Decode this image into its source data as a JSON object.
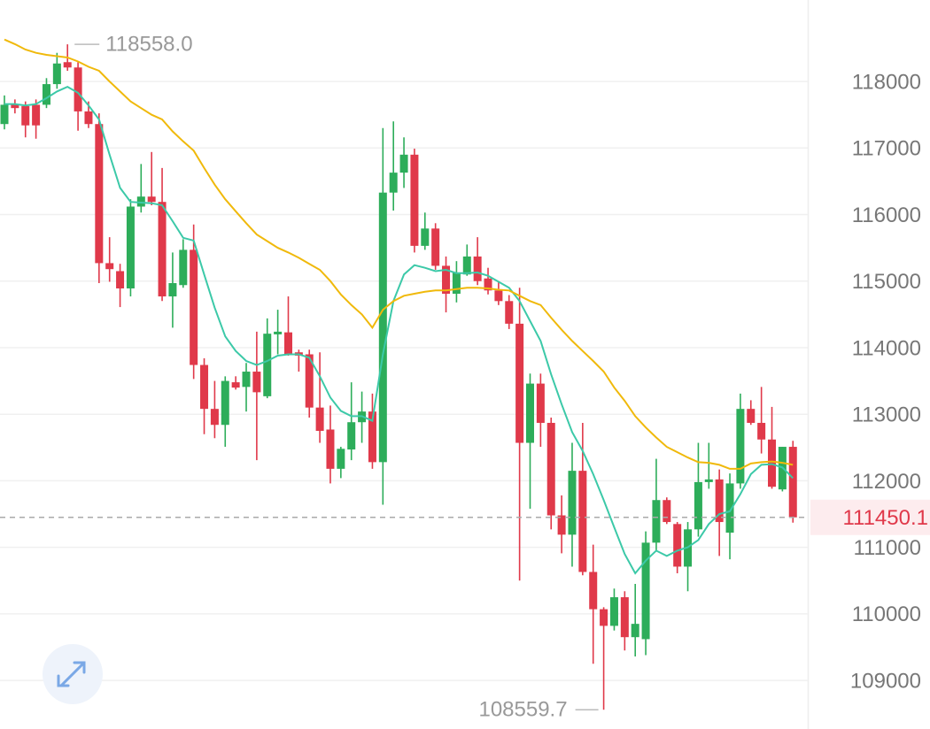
{
  "chart_data": {
    "type": "candlestick",
    "ylim": [
      108270,
      119224
    ],
    "yticks": [
      109000,
      110000,
      111000,
      112000,
      113000,
      114000,
      115000,
      116000,
      117000,
      118000
    ],
    "grid": true,
    "up_color": "#2dad5a",
    "down_color": "#e0394a",
    "open": [
      117360,
      117650,
      117630,
      117650,
      117650,
      117960,
      118290,
      118210,
      117550,
      117360,
      115270,
      115150,
      114890,
      116120,
      116270,
      116190,
      114770,
      114940,
      115470,
      113740,
      113080,
      112840,
      113480,
      113410,
      113640,
      113270,
      114200,
      114230,
      113930,
      113900,
      113100,
      112770,
      112180,
      112470,
      112880,
      113040,
      112280,
      116330,
      116630,
      116900,
      115530,
      115790,
      115230,
      114810,
      115100,
      115370,
      115040,
      114860,
      114700,
      114360,
      112570,
      113460,
      112870,
      111480,
      111190,
      112150,
      110630,
      110070,
      109820,
      110250,
      109650,
      109620,
      111070,
      111710,
      111350,
      110710,
      111270,
      111980,
      112020,
      111220,
      111960,
      113080,
      112870,
      112620,
      111870,
      112510
    ],
    "high": [
      117790,
      117730,
      117700,
      117730,
      118050,
      118430,
      118558,
      118290,
      117700,
      117520,
      115660,
      115260,
      116230,
      116760,
      116940,
      116700,
      115430,
      115630,
      115850,
      113840,
      113500,
      113570,
      113570,
      113770,
      114240,
      114440,
      114570,
      114770,
      113970,
      113970,
      113930,
      113130,
      112510,
      113480,
      113340,
      113310,
      117300,
      117400,
      117160,
      116990,
      116030,
      115870,
      115370,
      115300,
      115550,
      115660,
      115200,
      114990,
      114790,
      114900,
      113610,
      113610,
      112950,
      111780,
      112570,
      112870,
      111040,
      110100,
      110380,
      110340,
      110450,
      111240,
      112330,
      111750,
      111380,
      111380,
      112570,
      112570,
      112170,
      112110,
      113310,
      113210,
      113410,
      113110,
      112510,
      112600
    ],
    "low": [
      117280,
      117520,
      117160,
      117140,
      117600,
      117890,
      118160,
      117260,
      117300,
      114970,
      114990,
      114610,
      114770,
      116030,
      116140,
      114700,
      114300,
      114900,
      113530,
      112700,
      112640,
      112510,
      113370,
      113040,
      112310,
      113240,
      113900,
      113880,
      113640,
      112950,
      112570,
      111960,
      112040,
      112310,
      112570,
      112180,
      111640,
      116060,
      116400,
      115430,
      115470,
      115170,
      114530,
      114680,
      115080,
      114940,
      114800,
      114640,
      114280,
      110500,
      111580,
      112510,
      111270,
      110910,
      110710,
      110580,
      109250,
      108559.7,
      109750,
      109450,
      109360,
      109380,
      110950,
      111350,
      110610,
      110340,
      111160,
      111880,
      110870,
      110820,
      111880,
      112840,
      112410,
      111880,
      111840,
      111370
    ],
    "close": [
      117650,
      117600,
      117340,
      117340,
      117960,
      118270,
      118210,
      117550,
      117360,
      115270,
      115180,
      114890,
      116120,
      116270,
      116190,
      114770,
      114970,
      115470,
      113740,
      113080,
      112840,
      113500,
      113400,
      113640,
      113330,
      114210,
      114240,
      113900,
      113880,
      113100,
      112750,
      112180,
      112480,
      112880,
      113040,
      112280,
      116330,
      116630,
      116900,
      115530,
      115790,
      115230,
      114810,
      115130,
      115370,
      115000,
      114860,
      114700,
      114360,
      112570,
      113460,
      112870,
      111480,
      111190,
      112150,
      110630,
      110070,
      109820,
      110250,
      109650,
      109850,
      111070,
      111710,
      111380,
      110710,
      111270,
      111980,
      112020,
      111380,
      111960,
      113080,
      112870,
      112620,
      111910,
      112510,
      111450.1
    ],
    "series": [
      {
        "color": "#3cc9a8",
        "values": [
          117660,
          117660,
          117640,
          117660,
          117750,
          117850,
          117920,
          117830,
          117640,
          117430,
          116900,
          116400,
          116190,
          116180,
          116170,
          116140,
          115900,
          115650,
          115610,
          115100,
          114600,
          114170,
          113950,
          113800,
          113740,
          113800,
          113880,
          113900,
          113900,
          113850,
          113570,
          113250,
          113050,
          112970,
          112970,
          112900,
          113900,
          114700,
          115100,
          115240,
          115200,
          115150,
          115170,
          115120,
          115120,
          115130,
          115080,
          114990,
          114900,
          114700,
          114400,
          114100,
          113600,
          113150,
          112730,
          112450,
          112100,
          111710,
          111300,
          110900,
          110610,
          110800,
          110950,
          110870,
          110950,
          111000,
          111110,
          111350,
          111500,
          111540,
          111800,
          112100,
          112240,
          112250,
          112200,
          112040
        ]
      },
      {
        "color": "#f0b90b",
        "values": [
          118630,
          118560,
          118480,
          118430,
          118400,
          118380,
          118360,
          118300,
          118220,
          118160,
          118000,
          117850,
          117700,
          117600,
          117500,
          117430,
          117250,
          117100,
          116960,
          116700,
          116450,
          116230,
          116050,
          115870,
          115700,
          115600,
          115500,
          115430,
          115350,
          115260,
          115170,
          115000,
          114800,
          114640,
          114500,
          114300,
          114570,
          114700,
          114780,
          114810,
          114840,
          114860,
          114860,
          114880,
          114900,
          114900,
          114890,
          114870,
          114860,
          114780,
          114700,
          114640,
          114450,
          114270,
          114100,
          113950,
          113800,
          113640,
          113400,
          113200,
          112970,
          112800,
          112650,
          112510,
          112430,
          112350,
          112280,
          112270,
          112240,
          112180,
          112180,
          112260,
          112280,
          112290,
          112270,
          112240
        ]
      }
    ],
    "max_label": {
      "value": 118558,
      "label": "118558.0"
    },
    "min_label": 108559.7,
    "last_price": 111450.1
  }
}
